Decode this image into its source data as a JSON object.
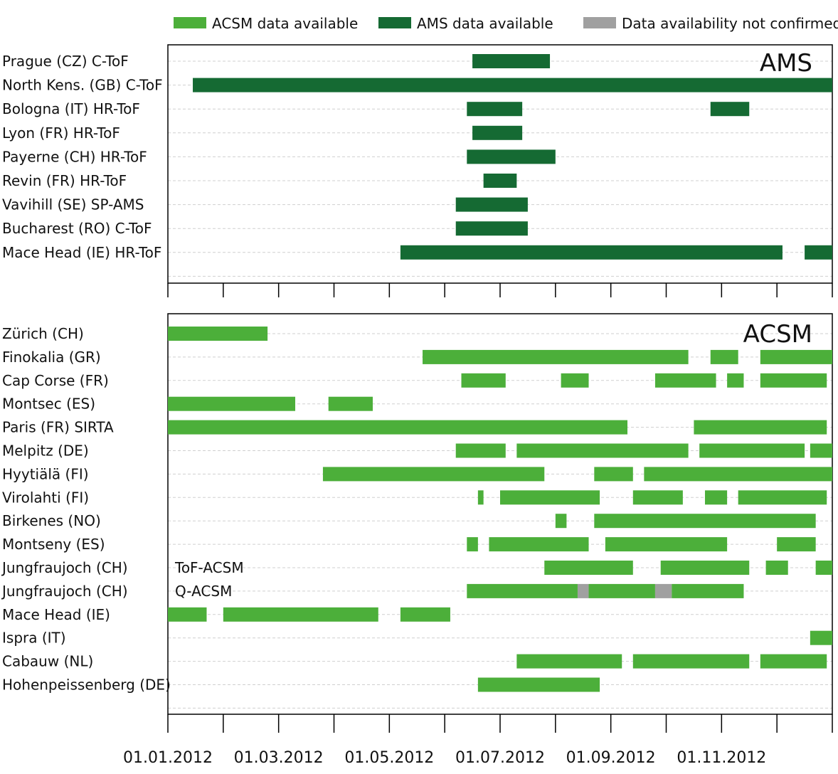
{
  "chart_data": {
    "type": "gantt",
    "x_unit": "month offset from 01.01.2012 (fractional)",
    "xlim": [
      0,
      12
    ],
    "x_ticks": [
      0,
      1,
      2,
      3,
      4,
      5,
      6,
      7,
      8,
      9,
      10,
      11,
      12
    ],
    "x_tick_labels": [
      {
        "pos": 0,
        "text": "01.01.2012"
      },
      {
        "pos": 2,
        "text": "01.03.2012"
      },
      {
        "pos": 4,
        "text": "01.05.2012"
      },
      {
        "pos": 6,
        "text": "01.07.2012"
      },
      {
        "pos": 8,
        "text": "01.09.2012"
      },
      {
        "pos": 10,
        "text": "01.11.2012"
      }
    ],
    "legend": {
      "placement": "top",
      "items": [
        {
          "key": "acsm",
          "label": "ACSM data available",
          "color": "#4caf3a"
        },
        {
          "key": "ams",
          "label": "AMS data available",
          "color": "#156a33"
        },
        {
          "key": "na",
          "label": "Data availability not confirmed",
          "color": "#a0a0a0"
        }
      ]
    },
    "panels": [
      {
        "title": "AMS",
        "default_type": "ams",
        "rows": [
          {
            "label": "Prague (CZ) C-ToF",
            "segments": [
              [
                5.5,
                6.9
              ]
            ]
          },
          {
            "label": "North Kens. (GB) C-ToF",
            "segments": [
              [
                0.45,
                12.0
              ]
            ]
          },
          {
            "label": "Bologna (IT) HR-ToF",
            "segments": [
              [
                5.4,
                6.4
              ],
              [
                9.8,
                10.5
              ]
            ]
          },
          {
            "label": "Lyon (FR) HR-ToF",
            "segments": [
              [
                5.5,
                6.4
              ]
            ]
          },
          {
            "label": "Payerne (CH) HR-ToF",
            "segments": [
              [
                5.4,
                7.0
              ]
            ]
          },
          {
            "label": "Revin (FR) HR-ToF",
            "segments": [
              [
                5.7,
                6.3
              ]
            ]
          },
          {
            "label": "Vavihill (SE) SP-AMS",
            "segments": [
              [
                5.2,
                6.5
              ]
            ]
          },
          {
            "label": "Bucharest (RO) C-ToF",
            "segments": [
              [
                5.2,
                6.5
              ]
            ]
          },
          {
            "label": "Mace Head (IE) HR-ToF",
            "segments": [
              [
                4.2,
                11.1
              ],
              [
                11.5,
                12.0
              ]
            ]
          }
        ]
      },
      {
        "title": "ACSM",
        "default_type": "acsm",
        "rows": [
          {
            "label": "Zürich (CH)",
            "note": "",
            "segments": [
              [
                0.0,
                1.8
              ]
            ]
          },
          {
            "label": "Finokalia (GR)",
            "note": "",
            "segments": [
              [
                4.6,
                9.4
              ],
              [
                9.8,
                10.3
              ],
              [
                10.7,
                12.0
              ]
            ]
          },
          {
            "label": "Cap Corse (FR)",
            "note": "",
            "segments": [
              [
                5.3,
                6.1
              ],
              [
                7.1,
                7.6
              ],
              [
                8.8,
                9.9
              ],
              [
                10.1,
                10.4
              ],
              [
                10.7,
                11.9
              ]
            ]
          },
          {
            "label": "Montsec (ES)",
            "note": "",
            "segments": [
              [
                0.0,
                2.3
              ],
              [
                2.9,
                3.7
              ]
            ]
          },
          {
            "label": "Paris (FR) SIRTA",
            "note": "",
            "segments": [
              [
                0.0,
                8.3
              ],
              [
                9.5,
                11.9
              ]
            ]
          },
          {
            "label": "Melpitz (DE)",
            "note": "",
            "segments": [
              [
                5.2,
                6.1
              ],
              [
                6.3,
                9.4
              ],
              [
                9.6,
                11.5
              ],
              [
                11.6,
                12.0
              ]
            ]
          },
          {
            "label": "Hyytiälä (FI)",
            "note": "",
            "segments": [
              [
                2.8,
                6.8
              ],
              [
                7.7,
                8.4
              ],
              [
                8.6,
                12.0
              ]
            ]
          },
          {
            "label": "Virolahti (FI)",
            "note": "",
            "segments": [
              [
                5.6,
                5.7
              ],
              [
                6.0,
                7.8
              ],
              [
                8.4,
                9.3
              ],
              [
                9.7,
                10.1
              ],
              [
                10.3,
                11.9
              ]
            ]
          },
          {
            "label": "Birkenes (NO)",
            "note": "",
            "segments": [
              [
                7.0,
                7.2
              ],
              [
                7.7,
                11.7
              ]
            ]
          },
          {
            "label": "Montseny (ES)",
            "note": "",
            "segments": [
              [
                5.4,
                5.6
              ],
              [
                5.8,
                7.6
              ],
              [
                7.9,
                10.1
              ],
              [
                11.0,
                11.7
              ]
            ]
          },
          {
            "label": "Jungfraujoch (CH)",
            "note": "ToF-ACSM",
            "segments": [
              [
                6.8,
                8.4
              ],
              [
                8.9,
                10.5
              ],
              [
                10.8,
                11.2
              ],
              [
                11.7,
                12.0
              ]
            ]
          },
          {
            "label": "Jungfraujoch (CH)",
            "note": "Q-ACSM",
            "segments": [
              [
                5.4,
                7.4
              ],
              [
                7.4,
                7.6,
                "na"
              ],
              [
                7.6,
                8.8
              ],
              [
                8.8,
                9.1,
                "na"
              ],
              [
                9.1,
                10.4
              ]
            ]
          },
          {
            "label": "Mace Head (IE)",
            "note": "",
            "segments": [
              [
                0.0,
                0.7
              ],
              [
                1.0,
                3.8
              ],
              [
                4.2,
                5.1
              ]
            ]
          },
          {
            "label": "Ispra (IT)",
            "note": "",
            "segments": [
              [
                11.6,
                12.0
              ]
            ]
          },
          {
            "label": "Cabauw (NL)",
            "note": "",
            "segments": [
              [
                6.3,
                8.2
              ],
              [
                8.4,
                10.5
              ],
              [
                10.7,
                11.9
              ]
            ]
          },
          {
            "label": "Hohenpeissenberg (DE)",
            "note": "",
            "segments": [
              [
                5.6,
                7.8
              ]
            ]
          }
        ]
      }
    ]
  }
}
